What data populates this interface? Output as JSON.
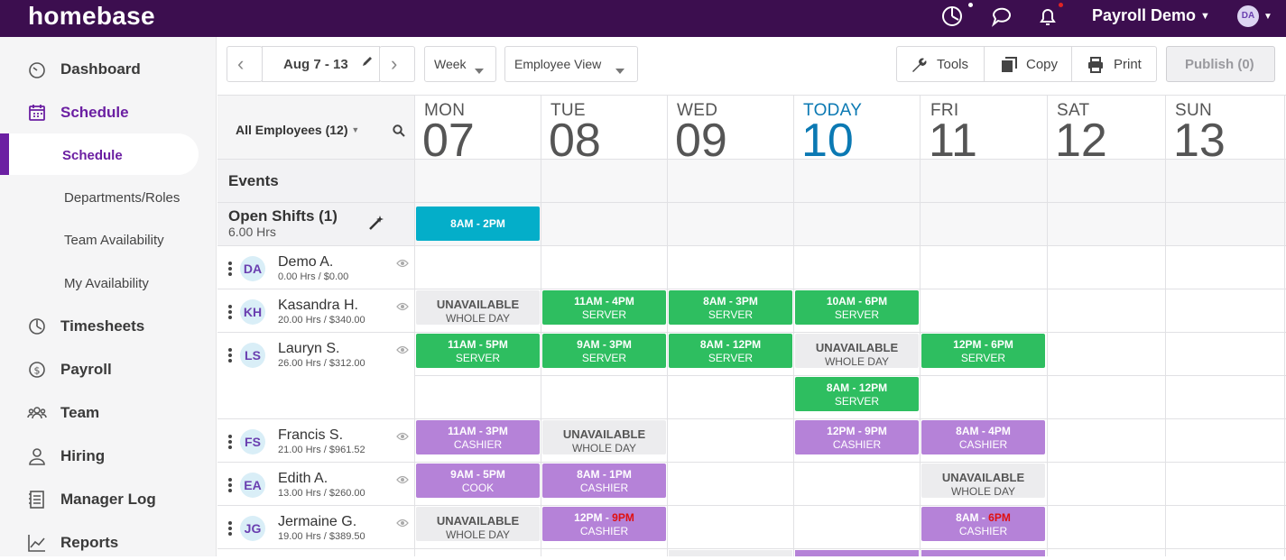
{
  "app": {
    "logo": "homebase",
    "account": "Payroll Demo",
    "avatar": "DA"
  },
  "top_icons": [
    "clock-icon",
    "chat-icon",
    "bell-icon"
  ],
  "sidebar": {
    "items": [
      {
        "label": "Dashboard",
        "icon": "gauge-icon"
      },
      {
        "label": "Schedule",
        "icon": "calendar-icon",
        "active": true
      },
      {
        "label": "Timesheets",
        "icon": "clock-icon"
      },
      {
        "label": "Payroll",
        "icon": "dollar-icon"
      },
      {
        "label": "Team",
        "icon": "people-icon"
      },
      {
        "label": "Hiring",
        "icon": "person-icon"
      },
      {
        "label": "Manager Log",
        "icon": "log-icon"
      },
      {
        "label": "Reports",
        "icon": "chart-icon"
      }
    ],
    "schedule_sub": [
      "Schedule",
      "Departments/Roles",
      "Team Availability",
      "My Availability"
    ]
  },
  "toolbar": {
    "date_range": "Aug 7 - 13",
    "range_select": "Week",
    "view_select": "Employee View",
    "tools": "Tools",
    "copy": "Copy",
    "print": "Print",
    "publish": "Publish (0)"
  },
  "filter": {
    "employees": "All Employees (12)"
  },
  "days": [
    {
      "label": "MON",
      "num": "07"
    },
    {
      "label": "TUE",
      "num": "08"
    },
    {
      "label": "WED",
      "num": "09"
    },
    {
      "label": "TODAY",
      "num": "10",
      "today": true
    },
    {
      "label": "FRI",
      "num": "11"
    },
    {
      "label": "SAT",
      "num": "12"
    },
    {
      "label": "SUN",
      "num": "13"
    }
  ],
  "events_label": "Events",
  "open_shifts": {
    "title": "Open Shifts (1)",
    "hours": "6.00 Hrs",
    "shift": "8AM - 2PM"
  },
  "employees": [
    {
      "initials": "DA",
      "name": "Demo A.",
      "sub": "0.00 Hrs / $0.00"
    },
    {
      "initials": "KH",
      "name": "Kasandra H.",
      "sub": "20.00 Hrs / $340.00"
    },
    {
      "initials": "LS",
      "name": "Lauryn S.",
      "sub": "26.00 Hrs / $312.00"
    },
    {
      "initials": "FS",
      "name": "Francis S.",
      "sub": "21.00 Hrs / $961.52"
    },
    {
      "initials": "EA",
      "name": "Edith A.",
      "sub": "13.00 Hrs / $260.00"
    },
    {
      "initials": "JG",
      "name": "Jermaine G.",
      "sub": "19.00 Hrs / $389.50"
    }
  ],
  "unavailable": {
    "title": "UNAVAILABLE",
    "sub": "WHOLE DAY"
  },
  "shifts": {
    "kh_tue": {
      "time": "11AM - 4PM",
      "role": "SERVER"
    },
    "kh_wed": {
      "time": "8AM - 3PM",
      "role": "SERVER"
    },
    "kh_thu": {
      "time": "10AM - 6PM",
      "role": "SERVER"
    },
    "ls_mon": {
      "time": "11AM - 5PM",
      "role": "SERVER"
    },
    "ls_tue": {
      "time": "9AM - 3PM",
      "role": "SERVER"
    },
    "ls_wed": {
      "time": "8AM - 12PM",
      "role": "SERVER"
    },
    "ls_fri": {
      "time": "12PM - 6PM",
      "role": "SERVER"
    },
    "ls_thu2": {
      "time": "8AM - 12PM",
      "role": "SERVER"
    },
    "fs_mon": {
      "time": "11AM - 3PM",
      "role": "CASHIER"
    },
    "fs_thu": {
      "time": "12PM - 9PM",
      "role": "CASHIER"
    },
    "fs_fri": {
      "time": "8AM - 4PM",
      "role": "CASHIER"
    },
    "ea_mon": {
      "time": "9AM - 5PM",
      "role": "COOK"
    },
    "ea_tue": {
      "time": "8AM - 1PM",
      "role": "CASHIER"
    },
    "jg_tue": {
      "time_start": "12PM - ",
      "time_end": "9PM",
      "role": "CASHIER"
    },
    "jg_fri": {
      "time_start": "8AM - ",
      "time_end": "6PM",
      "role": "CASHIER"
    }
  }
}
